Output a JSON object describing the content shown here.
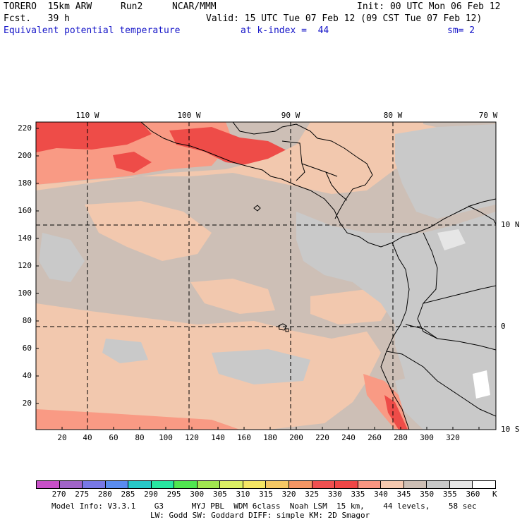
{
  "header": {
    "model_name": "TORERO  15km ARW",
    "run": "Run2",
    "org": "NCAR/MMM",
    "init": "Init: 00 UTC Mon 06 Feb 12",
    "forecast": "Fcst.   39 h",
    "valid": "Valid: 15 UTC Tue 07 Feb 12 (09 CST Tue 07 Feb 12)",
    "field": "Equivalent potential temperature",
    "level": "at k-index =  44",
    "smoothing": "sm= 2"
  },
  "map": {
    "lon_labels": [
      "110 W",
      "100 W",
      "90 W",
      "80 W",
      "70 W"
    ],
    "lat_labels": [
      "10 N",
      "0",
      "10 S"
    ],
    "y_ticks": [
      "220",
      "200",
      "180",
      "160",
      "140",
      "120",
      "100",
      "80",
      "60",
      "40",
      "20"
    ],
    "x_ticks": [
      "20",
      "40",
      "60",
      "80",
      "100",
      "120",
      "140",
      "160",
      "180",
      "200",
      "220",
      "240",
      "260",
      "280",
      "300",
      "320"
    ],
    "colors": {
      "warm_dark": "#ee4c48",
      "warm_mid": "#f99a84",
      "peach": "#f2c8ae",
      "taupe": "#cdbfb6",
      "gray": "#c9c9c9",
      "coast": "#000000"
    }
  },
  "colorbar": {
    "colors": [
      "#c850c8",
      "#a064c8",
      "#7878e6",
      "#5a8cf0",
      "#28c8c8",
      "#28e6a0",
      "#50e650",
      "#a0e650",
      "#dcf064",
      "#f5e664",
      "#f5c864",
      "#f59664",
      "#f05050",
      "#f04646",
      "#fa9682",
      "#f5c8af",
      "#cdbeb4",
      "#c8c8c8",
      "#e6e6e6",
      "#ffffff"
    ],
    "labels": [
      "270",
      "275",
      "280",
      "285",
      "290",
      "295",
      "300",
      "305",
      "310",
      "315",
      "320",
      "325",
      "330",
      "335",
      "340",
      "345",
      "350",
      "355",
      "360"
    ],
    "unit": "K"
  },
  "footer": {
    "line1": "Model Info: V3.3.1    G3      MYJ PBL  WDM 6class  Noah LSM  15 km,    44 levels,    58 sec",
    "line2": "LW: Godd SW: Goddard DIFF: simple KM: 2D Smagor"
  }
}
